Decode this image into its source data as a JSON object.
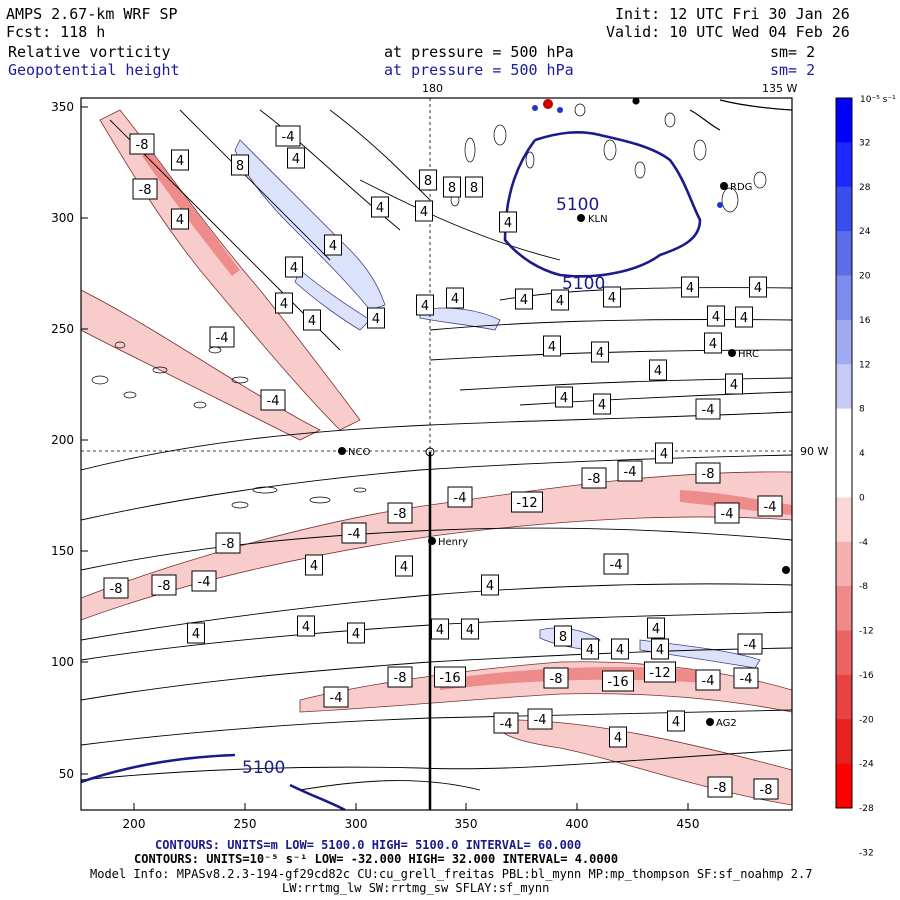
{
  "header": {
    "model": "AMPS 2.67-km WRF SP",
    "fcst": "Fcst:  118 h",
    "init": "Init: 12 UTC Fri 30 Jan 26",
    "valid": "Valid: 10 UTC Wed 04 Feb 26",
    "field1": "Relative vorticity",
    "field2": "Geopotential height",
    "pressure1": "at pressure =  500 hPa",
    "pressure2": "at pressure =  500 hPa",
    "sm1": "sm= 2",
    "sm2": "sm= 2"
  },
  "chart_data": {
    "type": "contour-map",
    "x_ticks": [
      "200",
      "250",
      "300",
      "350",
      "400",
      "450"
    ],
    "y_ticks": [
      "50",
      "100",
      "150",
      "200",
      "250",
      "300",
      "350"
    ],
    "xlim": [
      175,
      495
    ],
    "ylim": [
      33,
      356
    ],
    "meridian_labels": {
      "top_180": "180",
      "top_135W": "135 W",
      "right_90W": "90 W"
    },
    "colorbar": {
      "unit": "10⁻⁵ s⁻¹",
      "ticks": [
        "32",
        "28",
        "24",
        "20",
        "16",
        "12",
        "8",
        "4",
        "0",
        "-4",
        "-8",
        "-12",
        "-16",
        "-20",
        "-24",
        "-28",
        "-32"
      ],
      "colors": [
        "#0000ff",
        "#1c28ff",
        "#3a4ef0",
        "#5b6ee8",
        "#7d8cee",
        "#a0abf2",
        "#c6ccf6",
        "#ffffff",
        "#ffffff",
        "#fbd6d6",
        "#f6b0b0",
        "#f08a8a",
        "#ec6565",
        "#e84242",
        "#e82222",
        "#ff0000"
      ]
    },
    "height_contour_labels": [
      "5100",
      "5100",
      "5100"
    ],
    "vorticity_contour_labels": [
      "-8",
      "-8",
      "4",
      "8",
      "4",
      "-4",
      "4",
      "4",
      "4",
      "4",
      "4",
      "4",
      "4",
      "8",
      "8",
      "8",
      "4",
      "4",
      "4",
      "4",
      "4",
      "4",
      "4",
      "4",
      "4",
      "4",
      "4",
      "-4",
      "4",
      "4",
      "4",
      "4",
      "4",
      "4",
      "4",
      "-4",
      "-4",
      "-4",
      "-8",
      "-4",
      "-8",
      "-12",
      "-4",
      "-8",
      "-4",
      "-4",
      "-8",
      "4",
      "-8",
      "-8",
      "-4",
      "4",
      "4",
      "4",
      "-4",
      "4",
      "4",
      "4",
      "4",
      "4",
      "8",
      "4",
      "4",
      "4",
      "4",
      "-4",
      "-8",
      "-16",
      "-8",
      "-16",
      "-12",
      "-4",
      "-4",
      "-4",
      "-4",
      "-4",
      "4",
      "4",
      "-8",
      "-8"
    ],
    "stations": [
      "NCO",
      "Henry",
      "KLN",
      "HRC",
      "RDG",
      "AG2"
    ],
    "footer": {
      "contours1": "CONTOURS:  UNITS=m  LOW=  5100.0        HIGH=  5100.0       INTERVAL=  60.000",
      "contours2": "CONTOURS:  UNITS=10⁻⁵ s⁻¹  LOW=  -32.000       HIGH=  32.000       INTERVAL=   4.0000",
      "model_info": "Model Info: MPASv8.2.3-194-gf29cd82c CU:cu_grell_freitas PBL:bl_mynn MP:mp_thompson SF:sf_noahmp 2.7",
      "model_info2": "LW:rrtmg_lw SW:rrtmg_sw SFLAY:sf_mynn"
    }
  }
}
